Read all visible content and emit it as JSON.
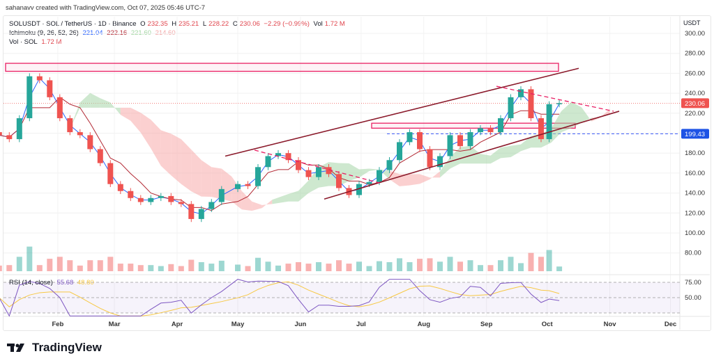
{
  "credit": "sahanavv created with TradingView.com, Oct 07, 2025 05:46 UTC-7",
  "legend": {
    "symbol": "SOLUSDT · SOL / TetherUS · 1D · Binance",
    "o_label": "O",
    "o": "232.35",
    "h_label": "H",
    "h": "235.21",
    "l_label": "L",
    "l": "228.22",
    "c_label": "C",
    "c": "230.06",
    "change": "−2.29 (−0.99%)",
    "vol_label": "Vol",
    "vol": "1.72 M",
    "ichimoku": "Ichimoku (9, 26, 52, 26)",
    "ichi_vals": [
      "221.04",
      "222.16",
      "221.60",
      "214.60"
    ],
    "vol_study": "Vol · SOL",
    "vol_study_val": "1.72 M",
    "rsi": "RSI (14, close)",
    "rsi_val": "55.68",
    "rsi_ma": "48.80"
  },
  "currency": "USDT",
  "price_badge": "230.06",
  "level_badge": "199.43",
  "logo": "TradingView",
  "colors": {
    "up": "#26a69a",
    "down": "#ef5350",
    "tenkan": "#2962ff",
    "kijun": "#b22833",
    "cloud_up": "#a5d6a7",
    "cloud_down": "#f8a9a9",
    "rsi": "#7e57c2",
    "rsi_ma": "#f7c843",
    "trend": "#8b1a2b",
    "zone": "#e91e63"
  },
  "chart_data": {
    "type": "candlestick",
    "ylim": [
      70,
      305
    ],
    "y_ticks": [
      "300.00",
      "280.00",
      "260.00",
      "240.00",
      "220.00",
      "180.00",
      "160.00",
      "140.00",
      "120.00",
      "100.00",
      "80.00"
    ],
    "x_ticks": [
      "Feb",
      "Mar",
      "Apr",
      "May",
      "Jun",
      "Jul",
      "Aug",
      "Sep",
      "Oct",
      "Nov",
      "Dec"
    ],
    "rsi_ticks": [
      "75.00",
      "50.00"
    ],
    "closes": [
      [
        "2025-01-03",
        198
      ],
      [
        "2025-01-08",
        194
      ],
      [
        "2025-01-13",
        215
      ],
      [
        "2025-01-18",
        257
      ],
      [
        "2025-01-23",
        253
      ],
      [
        "2025-01-28",
        236
      ],
      [
        "2025-02-02",
        215
      ],
      [
        "2025-02-07",
        201
      ],
      [
        "2025-02-12",
        198
      ],
      [
        "2025-02-17",
        184
      ],
      [
        "2025-02-22",
        170
      ],
      [
        "2025-02-27",
        149
      ],
      [
        "2025-03-04",
        142
      ],
      [
        "2025-03-09",
        135
      ],
      [
        "2025-03-14",
        131
      ],
      [
        "2025-03-19",
        135
      ],
      [
        "2025-03-24",
        137
      ],
      [
        "2025-03-29",
        131
      ],
      [
        "2025-04-03",
        129
      ],
      [
        "2025-04-08",
        114
      ],
      [
        "2025-04-13",
        124
      ],
      [
        "2025-04-18",
        131
      ],
      [
        "2025-04-23",
        144
      ],
      [
        "2025-05-01",
        149
      ],
      [
        "2025-05-06",
        147
      ],
      [
        "2025-05-11",
        166
      ],
      [
        "2025-05-16",
        177
      ],
      [
        "2025-05-21",
        180
      ],
      [
        "2025-05-26",
        173
      ],
      [
        "2025-05-31",
        163
      ],
      [
        "2025-06-05",
        156
      ],
      [
        "2025-06-10",
        166
      ],
      [
        "2025-06-15",
        159
      ],
      [
        "2025-06-20",
        145
      ],
      [
        "2025-06-25",
        138
      ],
      [
        "2025-06-30",
        149
      ],
      [
        "2025-07-05",
        151
      ],
      [
        "2025-07-10",
        163
      ],
      [
        "2025-07-15",
        173
      ],
      [
        "2025-07-20",
        191
      ],
      [
        "2025-07-25",
        201
      ],
      [
        "2025-07-30",
        184
      ],
      [
        "2025-08-04",
        166
      ],
      [
        "2025-08-09",
        177
      ],
      [
        "2025-08-14",
        198
      ],
      [
        "2025-08-19",
        187
      ],
      [
        "2025-08-24",
        201
      ],
      [
        "2025-08-29",
        205
      ],
      [
        "2025-09-03",
        201
      ],
      [
        "2025-09-08",
        215
      ],
      [
        "2025-09-13",
        236
      ],
      [
        "2025-09-18",
        244
      ],
      [
        "2025-09-23",
        215
      ],
      [
        "2025-09-28",
        194
      ],
      [
        "2025-10-02",
        229
      ],
      [
        "2025-10-07",
        230.06
      ]
    ]
  }
}
